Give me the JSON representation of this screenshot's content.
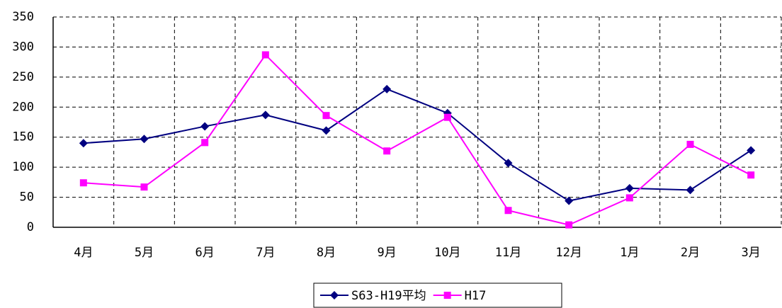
{
  "chart_data": {
    "type": "line",
    "categories": [
      "4月",
      "5月",
      "6月",
      "7月",
      "8月",
      "9月",
      "10月",
      "11月",
      "12月",
      "1月",
      "2月",
      "3月"
    ],
    "series": [
      {
        "name": "S63-H19平均",
        "color": "#000080",
        "marker": "diamond",
        "values": [
          140,
          147,
          168,
          187,
          161,
          230,
          190,
          107,
          44,
          65,
          62,
          128
        ]
      },
      {
        "name": "H17",
        "color": "#ff00ff",
        "marker": "square",
        "values": [
          74,
          67,
          141,
          287,
          186,
          127,
          183,
          28,
          4,
          49,
          138,
          87
        ]
      }
    ],
    "ylim": [
      0,
      350
    ],
    "yticks": [
      0,
      50,
      100,
      150,
      200,
      250,
      300,
      350
    ],
    "grid": true,
    "legend": "bottom"
  }
}
